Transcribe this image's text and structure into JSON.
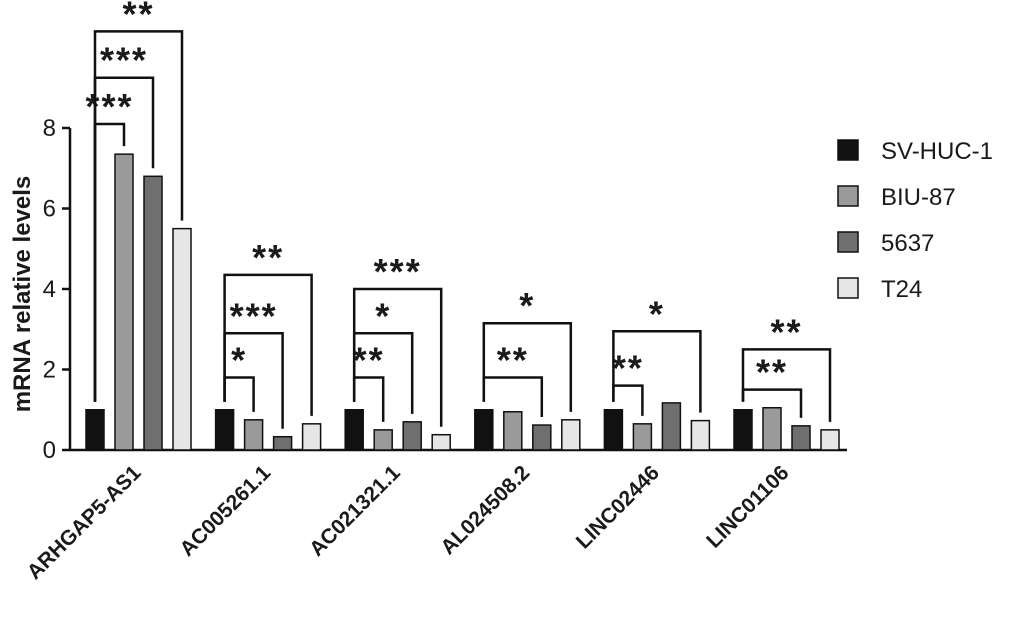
{
  "chart_data": {
    "type": "bar",
    "title": "",
    "xlabel": "",
    "ylabel": "mRNA relative levels",
    "ylim": [
      0,
      8
    ],
    "yticks": [
      0,
      2,
      4,
      6,
      8
    ],
    "grid": false,
    "legend_position": "right",
    "categories": [
      "ARHGAP5-AS1",
      "AC005261.1",
      "AC021321.1",
      "AL024508.2",
      "LINC02446",
      "LINC01106"
    ],
    "series": [
      {
        "name": "SV-HUC-1",
        "color": "#111111",
        "values": [
          1.0,
          1.0,
          1.0,
          1.0,
          1.0,
          1.0
        ]
      },
      {
        "name": "BIU-87",
        "color": "#9a9a9a",
        "values": [
          7.35,
          0.75,
          0.5,
          0.95,
          0.65,
          1.05
        ]
      },
      {
        "name": "5637",
        "color": "#6f6f6f",
        "values": [
          6.8,
          0.33,
          0.7,
          0.62,
          1.17,
          0.6
        ]
      },
      {
        "name": "T24",
        "color": "#e6e6e6",
        "values": [
          5.5,
          0.65,
          0.38,
          0.75,
          0.73,
          0.5
        ]
      }
    ],
    "significance": [
      {
        "category": "ARHGAP5-AS1",
        "comparisons": [
          {
            "compare_series": "BIU-87",
            "label": "***",
            "level": 8.1
          },
          {
            "compare_series": "5637",
            "label": "***",
            "level": 9.25
          },
          {
            "compare_series": "T24",
            "label": "**",
            "level": 10.4
          }
        ]
      },
      {
        "category": "AC005261.1",
        "comparisons": [
          {
            "compare_series": "BIU-87",
            "label": "*",
            "level": 1.8
          },
          {
            "compare_series": "5637",
            "label": "***",
            "level": 2.9
          },
          {
            "compare_series": "T24",
            "label": "**",
            "level": 4.35
          }
        ]
      },
      {
        "category": "AC021321.1",
        "comparisons": [
          {
            "compare_series": "BIU-87",
            "label": "**",
            "level": 1.8
          },
          {
            "compare_series": "5637",
            "label": "*",
            "level": 2.9
          },
          {
            "compare_series": "T24",
            "label": "***",
            "level": 4.0
          }
        ]
      },
      {
        "category": "AL024508.2",
        "comparisons": [
          {
            "compare_series": "5637",
            "label": "**",
            "level": 1.8
          },
          {
            "compare_series": "T24",
            "label": "*",
            "level": 3.15
          }
        ]
      },
      {
        "category": "LINC02446",
        "comparisons": [
          {
            "compare_series": "BIU-87",
            "label": "**",
            "level": 1.6
          },
          {
            "compare_series": "T24",
            "label": "*",
            "level": 2.95
          }
        ]
      },
      {
        "category": "LINC01106",
        "comparisons": [
          {
            "compare_series": "5637",
            "label": "**",
            "level": 1.5
          },
          {
            "compare_series": "T24",
            "label": "**",
            "level": 2.5
          }
        ]
      }
    ]
  }
}
